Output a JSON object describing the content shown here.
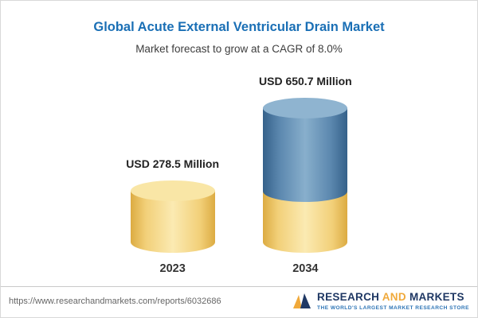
{
  "header": {
    "title": "Global Acute External Ventricular Drain Market",
    "subtitle": "Market forecast to grow at a CAGR of 8.0%"
  },
  "chart_data": {
    "type": "bar",
    "categories": [
      "2023",
      "2034"
    ],
    "values": [
      278.5,
      650.7
    ],
    "value_labels": [
      "USD 278.5 Million",
      "USD 650.7 Million"
    ],
    "title": "Global Acute External Ventricular Drain Market",
    "subtitle": "Market forecast to grow at a CAGR of 8.0%",
    "unit": "USD Million",
    "cagr": "8.0%",
    "legend_position": "none",
    "grid": false,
    "colors": {
      "bar_2023": "#F2D079",
      "bar_2034_base": "#F2D079",
      "bar_2034_growth": "#5C88AF",
      "title_accent": "#1A6FB5"
    }
  },
  "footer": {
    "url": "https://www.researchandmarkets.com/reports/6032686",
    "logo": {
      "research": "RESEARCH",
      "and": " AND ",
      "markets": "MARKETS",
      "tagline": "THE WORLD'S LARGEST MARKET RESEARCH STORE"
    }
  }
}
